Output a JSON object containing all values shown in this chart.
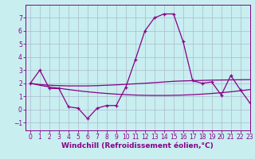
{
  "title": "Windchill (Refroidissement éolien,°C)",
  "bg_color": "#c8eef0",
  "line_color": "#880088",
  "grid_color": "#aabbcc",
  "xlim": [
    -0.5,
    23
  ],
  "ylim": [
    -1.6,
    8.0
  ],
  "yticks": [
    -1,
    0,
    1,
    2,
    3,
    4,
    5,
    6,
    7
  ],
  "xticks": [
    0,
    1,
    2,
    3,
    4,
    5,
    6,
    7,
    8,
    9,
    10,
    11,
    12,
    13,
    14,
    15,
    16,
    17,
    18,
    19,
    20,
    21,
    22,
    23
  ],
  "main_data": [
    2.0,
    3.0,
    1.6,
    1.6,
    0.2,
    0.1,
    -0.7,
    0.1,
    0.3,
    0.3,
    1.7,
    3.8,
    6.0,
    7.0,
    7.3,
    7.3,
    5.2,
    2.2,
    2.0,
    2.1,
    1.1,
    2.6,
    1.5,
    0.5
  ],
  "line2_data": [
    2.0,
    1.9,
    1.85,
    1.82,
    1.8,
    1.8,
    1.8,
    1.82,
    1.85,
    1.88,
    1.92,
    1.96,
    2.0,
    2.05,
    2.1,
    2.15,
    2.18,
    2.2,
    2.22,
    2.24,
    2.25,
    2.26,
    2.27,
    2.28
  ],
  "line3_data": [
    2.0,
    1.85,
    1.72,
    1.62,
    1.52,
    1.43,
    1.35,
    1.28,
    1.22,
    1.17,
    1.13,
    1.1,
    1.08,
    1.07,
    1.07,
    1.08,
    1.1,
    1.13,
    1.17,
    1.22,
    1.28,
    1.35,
    1.43,
    1.52
  ],
  "tick_fontsize": 5.5,
  "xlabel_fontsize": 6.5
}
